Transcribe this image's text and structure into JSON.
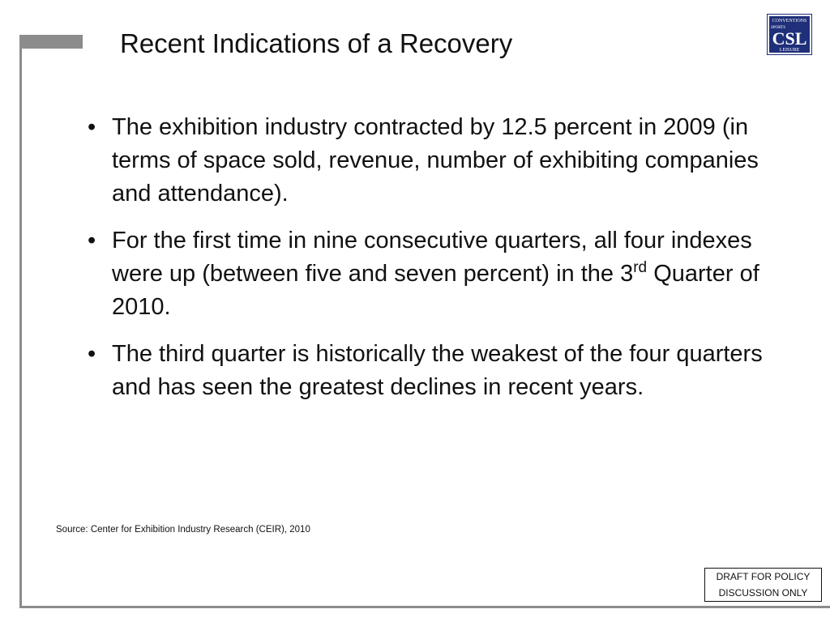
{
  "slide": {
    "title": "Recent Indications of a Recovery",
    "bullets": [
      {
        "text": "The exhibition industry contracted by 12.5 percent in 2009 (in terms of space sold, revenue, number of exhibiting companies and attendance)."
      },
      {
        "text_before": "For the first time in nine consecutive quarters, all four indexes were up (between five and seven percent) in the 3",
        "superscript": "rd",
        "text_after": " Quarter of 2010."
      },
      {
        "text": "The third quarter is historically the weakest of the four quarters and has seen the greatest declines in recent years."
      }
    ],
    "bullet_glyph": "•",
    "source": "Source:  Center for Exhibition Industry Research (CEIR), 2010",
    "draft_notice": {
      "line1": "DRAFT FOR POLICY",
      "line2": "DISCUSSION ONLY"
    }
  },
  "logo": {
    "monogram": "CSL",
    "top_text": "CONVENTIONS",
    "middle_text": "SPORTS",
    "bottom_text": "LEISURE",
    "colors": {
      "background": "#1f2f7a",
      "foreground": "#ffffff"
    }
  },
  "theme": {
    "rule_color": "#8c8c8c",
    "text_color": "#111111"
  }
}
